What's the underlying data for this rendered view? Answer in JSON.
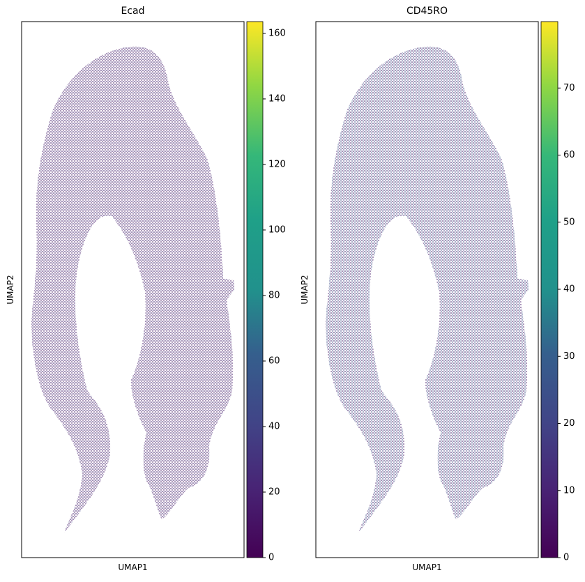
{
  "chart_data": [
    {
      "type": "scatter",
      "title": "Ecad",
      "xlabel": "UMAP1",
      "ylabel": "UMAP2",
      "colormap": "viridis",
      "colorbar": {
        "ylim": [
          0,
          163.6
        ],
        "yticks": [
          0,
          20,
          40,
          60,
          80,
          100,
          120,
          140,
          160
        ]
      }
    },
    {
      "type": "scatter",
      "title": "CD45RO",
      "xlabel": "UMAP1",
      "ylabel": "UMAP2",
      "colormap": "viridis",
      "colorbar": {
        "ylim": [
          0,
          79.9
        ],
        "yticks": [
          0,
          10,
          20,
          30,
          40,
          50,
          60,
          70
        ]
      }
    }
  ]
}
